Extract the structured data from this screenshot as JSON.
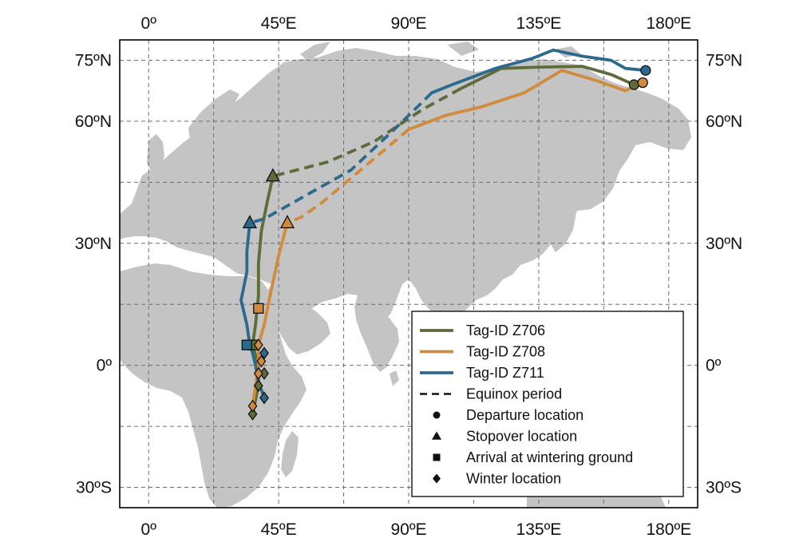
{
  "chart_data": {
    "type": "map",
    "projection": "equirectangular",
    "xlim": [
      -10,
      190
    ],
    "ylim": [
      -35,
      80
    ],
    "grid": true,
    "x_ticks": [
      {
        "value": 0,
        "label": "0º"
      },
      {
        "value": 45,
        "label": "45ºE"
      },
      {
        "value": 90,
        "label": "90ºE"
      },
      {
        "value": 135,
        "label": "135ºE"
      },
      {
        "value": 180,
        "label": "180ºE"
      }
    ],
    "y_ticks": [
      {
        "value": 75,
        "label": "75ºN"
      },
      {
        "value": 60,
        "label": "60ºN"
      },
      {
        "value": 30,
        "label": "30ºN"
      },
      {
        "value": 0,
        "label": "0º"
      },
      {
        "value": -30,
        "label": "30ºS"
      }
    ],
    "land_color": "#c4c4c4",
    "legend_position": "bottom-right",
    "series": [
      {
        "name": "Tag-ID Z706",
        "color": "#5e6b3a",
        "solid_segments": [
          [
            [
              168,
              69
            ],
            [
              160,
              71.5
            ],
            [
              150,
              73.5
            ],
            [
              135,
              73.3
            ],
            [
              122,
              73
            ],
            [
              115,
              70.5
            ],
            [
              108,
              68
            ]
          ],
          [
            [
              43,
              46.5
            ],
            [
              41,
              40
            ],
            [
              39,
              33
            ],
            [
              38,
              25
            ],
            [
              38,
              17
            ],
            [
              37,
              10
            ],
            [
              36,
              5
            ],
            [
              38,
              0
            ],
            [
              38,
              -5
            ],
            [
              36,
              -12
            ]
          ]
        ],
        "dashed_segments": [
          [
            [
              108,
              68
            ],
            [
              95,
              63
            ],
            [
              78,
              55
            ],
            [
              62,
              50
            ],
            [
              43,
              46.5
            ]
          ]
        ],
        "departure": [
          168,
          69
        ],
        "stopover": [
          [
            43,
            46.5
          ]
        ],
        "arrival": [
          [
            36,
            5
          ]
        ],
        "winter": [
          [
            36,
            -12
          ],
          [
            38,
            -5
          ],
          [
            40,
            -2
          ]
        ]
      },
      {
        "name": "Tag-ID Z708",
        "color": "#d28b3c",
        "solid_segments": [
          [
            [
              171,
              69.5
            ],
            [
              165,
              67.5
            ],
            [
              155,
              70
            ],
            [
              143,
              72.5
            ],
            [
              130,
              67
            ],
            [
              115,
              63.5
            ],
            [
              103,
              61.5
            ],
            [
              90,
              58
            ]
          ],
          [
            [
              48,
              35
            ],
            [
              45,
              27
            ],
            [
              42,
              17
            ],
            [
              40,
              10
            ],
            [
              38,
              5
            ],
            [
              38,
              0
            ],
            [
              37,
              -5
            ],
            [
              36,
              -10
            ]
          ]
        ],
        "dashed_segments": [
          [
            [
              90,
              58
            ],
            [
              80,
              52
            ],
            [
              70,
              46
            ],
            [
              60,
              40
            ],
            [
              53,
              36.5
            ],
            [
              48,
              35
            ]
          ]
        ],
        "departure": [
          171,
          69.5
        ],
        "stopover": [
          [
            48,
            35
          ]
        ],
        "arrival": [
          [
            38,
            14
          ]
        ],
        "winter": [
          [
            38,
            5
          ],
          [
            39,
            1
          ],
          [
            38,
            -2
          ],
          [
            36,
            -10
          ]
        ]
      },
      {
        "name": "Tag-ID Z711",
        "color": "#2b6a8c",
        "solid_segments": [
          [
            [
              172,
              72.5
            ],
            [
              165,
              73
            ],
            [
              160,
              75
            ],
            [
              150,
              76
            ],
            [
              140,
              77.5
            ],
            [
              133,
              75.5
            ],
            [
              120,
              73
            ],
            [
              105,
              69
            ],
            [
              98,
              67
            ]
          ],
          [
            [
              35,
              35
            ],
            [
              34,
              28
            ],
            [
              34,
              23
            ],
            [
              32,
              16
            ],
            [
              34,
              10
            ],
            [
              35,
              5
            ],
            [
              36,
              3
            ],
            [
              37,
              0
            ],
            [
              38,
              -4
            ],
            [
              40,
              -8
            ]
          ]
        ],
        "dashed_segments": [
          [
            [
              98,
              67
            ],
            [
              85,
              58
            ],
            [
              70,
              48
            ],
            [
              55,
              42
            ],
            [
              40,
              36
            ],
            [
              35,
              35
            ]
          ]
        ],
        "departure": [
          172,
          72.5
        ],
        "stopover": [
          [
            35,
            35
          ]
        ],
        "arrival": [
          [
            34,
            5
          ]
        ],
        "winter": [
          [
            40,
            3
          ],
          [
            40,
            -8
          ]
        ]
      }
    ],
    "legend": {
      "series_entries": [
        "Tag-ID Z706",
        "Tag-ID Z708",
        "Tag-ID Z711"
      ],
      "style_entries": [
        {
          "symbol": "dash",
          "label": "Equinox period"
        },
        {
          "symbol": "circle",
          "label": "Departure location"
        },
        {
          "symbol": "triangle",
          "label": "Stopover location"
        },
        {
          "symbol": "square",
          "label": "Arrival at wintering ground"
        },
        {
          "symbol": "diamond",
          "label": "Winter location"
        }
      ]
    }
  }
}
